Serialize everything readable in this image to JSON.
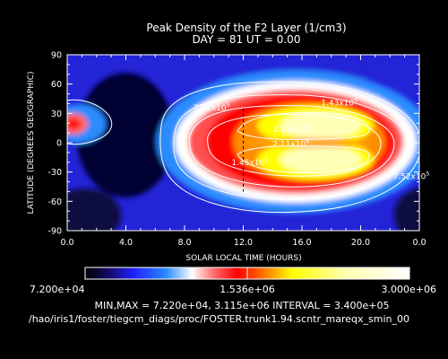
{
  "chart_data": {
    "type": "heatmap",
    "title": "Peak Density of the F2 Layer (1/cm3)",
    "subtitle": "DAY =  81   UT =  0.00",
    "xlabel": "SOLAR LOCAL TIME (HOURS)",
    "ylabel": "LATITUDE (DEGREES GEOGRAPHIC)",
    "xlim": [
      0,
      24
    ],
    "ylim": [
      -90,
      90
    ],
    "x_ticks": [
      "0.0",
      "4.0",
      "8.0",
      "12.0",
      "16.0",
      "20.0",
      "0.0"
    ],
    "x_tick_values": [
      0,
      4,
      8,
      12,
      16,
      20,
      24
    ],
    "y_ticks": [
      "-90",
      "-60",
      "-30",
      "0",
      "30",
      "60",
      "90"
    ],
    "y_tick_values": [
      -90,
      -60,
      -30,
      0,
      30,
      60,
      90
    ],
    "contour_labels": [
      {
        "text": "7.52x10",
        "exp": "5",
        "x": 8.6,
        "y": 33
      },
      {
        "text": "1.43x10",
        "exp": "6",
        "x": 17.3,
        "y": 38
      },
      {
        "text": "2.11x10",
        "exp": "6",
        "x": 14.0,
        "y": 11
      },
      {
        "text": "2.11x10",
        "exp": "6",
        "x": 14.0,
        "y": -4
      },
      {
        "text": "1.45x10",
        "exp": "6",
        "x": 11.2,
        "y": -23
      },
      {
        "text": "7.52x10",
        "exp": "5",
        "x": 22.2,
        "y": -37
      }
    ],
    "marker_line_x": 12.0,
    "colorbar": {
      "min_label": "7.200e+04",
      "mid_label": "1.536e+06",
      "max_label": "3.000e+06",
      "min": 72000,
      "max": 3000000
    },
    "footer_line1": "MIN,MAX =  7.220e+04, 3.115e+06 INTERVAL =  3.400e+05",
    "footer_line2": "/hao/iris1/foster/tiegcm_diags/proc/FOSTER.trunk1.94.scntr_mareqx_smin_00"
  }
}
